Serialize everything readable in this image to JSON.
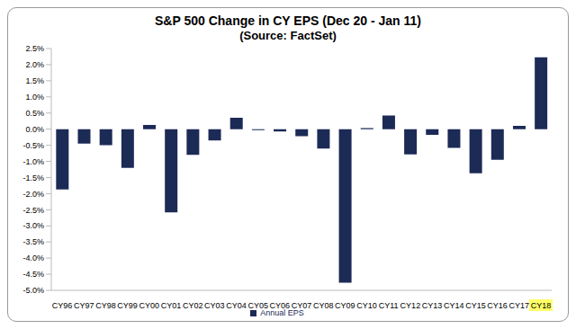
{
  "chart_data": {
    "type": "bar",
    "title": "S&P 500 Change in CY EPS (Dec 20 - Jan 11)",
    "subtitle": "(Source: FactSet)",
    "categories": [
      "CY96",
      "CY97",
      "CY98",
      "CY99",
      "CY00",
      "CY01",
      "CY02",
      "CY03",
      "CY04",
      "CY05",
      "CY06",
      "CY07",
      "CY08",
      "CY09",
      "CY10",
      "CY11",
      "CY12",
      "CY13",
      "CY14",
      "CY15",
      "CY16",
      "CY17",
      "CY18"
    ],
    "series": [
      {
        "name": "Annual EPS",
        "color": "#1c2a56",
        "values": [
          -1.87,
          -0.45,
          -0.5,
          -1.2,
          0.13,
          -2.58,
          -0.8,
          -0.35,
          0.35,
          -0.03,
          -0.07,
          -0.22,
          -0.6,
          -4.76,
          0.03,
          0.42,
          -0.78,
          -0.18,
          -0.58,
          -1.37,
          -0.95,
          0.1,
          2.23
        ]
      }
    ],
    "ylim": [
      -5,
      2.5
    ],
    "yticks": [
      {
        "value": -5,
        "label": "-5.0%"
      },
      {
        "value": -4.5,
        "label": "-4.5%"
      },
      {
        "value": -4,
        "label": "-4.0%"
      },
      {
        "value": -3.5,
        "label": "-3.5%"
      },
      {
        "value": -3,
        "label": "-3.0%"
      },
      {
        "value": -2.5,
        "label": "-2.5%"
      },
      {
        "value": -2,
        "label": "-2.0%"
      },
      {
        "value": -1.5,
        "label": "-1.5%"
      },
      {
        "value": -1,
        "label": "-1.0%"
      },
      {
        "value": -0.5,
        "label": "-0.5%"
      },
      {
        "value": 0,
        "label": "0.0%"
      },
      {
        "value": 0.5,
        "label": "0.5%"
      },
      {
        "value": 1,
        "label": "1.0%"
      },
      {
        "value": 1.5,
        "label": "1.5%"
      },
      {
        "value": 2,
        "label": "2.0%"
      },
      {
        "value": 2.5,
        "label": "2.5%"
      }
    ],
    "grid": false,
    "legend": "bottom"
  }
}
